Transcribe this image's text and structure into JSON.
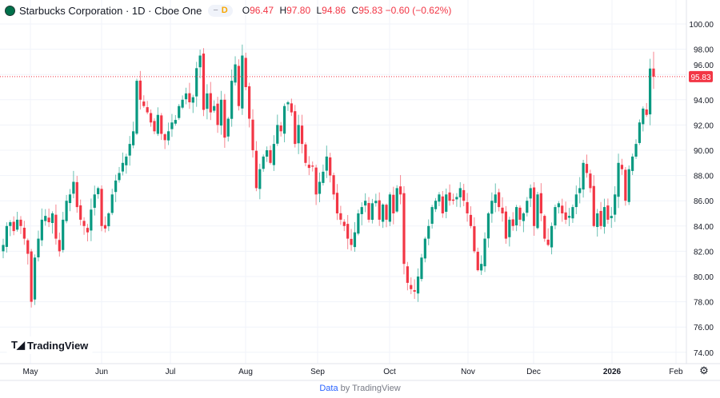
{
  "header": {
    "symbol_title": "Starbucks Corporation · 1D · Cboe One",
    "interval_badge": "D",
    "open_label": "O",
    "open": "96.47",
    "high_label": "H",
    "high": "97.80",
    "low_label": "L",
    "low": "94.86",
    "close_label": "C",
    "close": "95.83",
    "change": "−0.60 (−0.62%)"
  },
  "watermark": {
    "brand": "TradingView"
  },
  "footer": {
    "data_label": "Data",
    "by_label": "by TradingView"
  },
  "colors": {
    "up": "#089981",
    "down": "#f23645",
    "grid": "#f0f3fa",
    "last_price": "#f23645"
  },
  "chart_data": {
    "type": "candlestick",
    "title": "Starbucks Corporation · 1D · Cboe One",
    "x_tick_labels": [
      "May",
      "Jun",
      "Jul",
      "Aug",
      "Sep",
      "Oct",
      "Nov",
      "Dec",
      "2026",
      "Feb"
    ],
    "y_tick_labels": [
      "74.00",
      "76.00",
      "78.00",
      "80.00",
      "82.00",
      "84.00",
      "86.00",
      "88.00",
      "90.00",
      "92.00",
      "94.00",
      "96.00",
      "98.00",
      "100.00"
    ],
    "ylim": [
      73.4,
      101.8
    ],
    "grid": true,
    "last_price": 95.83,
    "last_candle": {
      "open": 96.47,
      "high": 97.8,
      "low": 94.86,
      "close": 95.83
    },
    "closes_by_month": {
      "May": [
        82.5,
        84,
        84.3,
        83.6,
        84.5,
        84,
        83,
        81.8,
        78,
        81.5,
        83,
        84.5,
        84.8,
        84.3,
        85,
        83,
        82,
        84.5,
        86,
        86.5,
        87.5,
        85.5,
        84.5,
        84,
        83.5,
        85.3,
        86.5,
        87,
        84,
        83.8
      ],
      "Jun": [
        85,
        86.5,
        87.6,
        88.2,
        89,
        89.5,
        90.5,
        91.5,
        95.5,
        94,
        93.5,
        93,
        92.2,
        91.5,
        92.8,
        91.3,
        90.8,
        91.5,
        92.2,
        92.4
      ],
      "Jul": [
        93.5,
        94,
        94.5,
        93.8,
        94.2,
        96.5,
        97.5,
        93.2,
        94.5,
        93,
        93.5,
        92,
        94,
        91,
        92.5,
        95.5,
        96.8,
        93.5,
        97.5,
        95,
        92.5
      ],
      "Aug": [
        90,
        87,
        88.5,
        89.5,
        90,
        89,
        90.5,
        92,
        91.5,
        93.5,
        93.8,
        93,
        90.5,
        92,
        90.5,
        89,
        88.6,
        88.7,
        86.5,
        87.5,
        88.3
      ],
      "Sep": [
        89.5,
        88,
        86.5,
        85,
        84.5,
        84,
        83,
        82.5,
        83.5,
        85,
        85.5,
        86,
        84.5,
        85.8,
        86,
        84.5,
        85.7,
        84.5,
        86.5,
        85
      ],
      "Oct": [
        87,
        86.5,
        81,
        79.5,
        79,
        78.8,
        80,
        81.5,
        83,
        84,
        85.5,
        86,
        86.5,
        85,
        86.5,
        86,
        86,
        86.3,
        87,
        86
      ],
      "Nov": [
        85,
        84,
        82,
        80.5,
        81,
        83,
        85,
        86,
        86.5,
        85.5,
        85,
        83,
        84.5,
        84,
        85.5,
        84.5,
        85,
        86,
        87,
        84
      ],
      "Dec": [
        86.5,
        85,
        83,
        82.5,
        84,
        85.5,
        85.8,
        85,
        84.5,
        84.8,
        85.5,
        86.5,
        87,
        89,
        88.2,
        87,
        84,
        85,
        84,
        85.5
      ],
      "Jan": [
        84.5,
        84.8,
        86.5,
        89,
        88.5,
        86,
        88.5,
        89.5,
        90.5,
        92.2,
        93.3,
        92.8,
        96.47,
        95.83
      ]
    }
  }
}
